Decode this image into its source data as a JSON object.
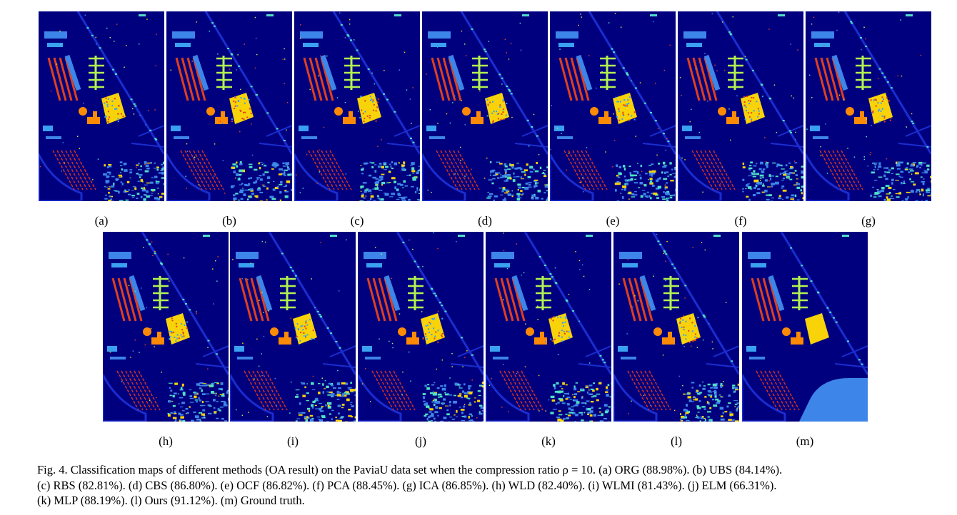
{
  "figure": {
    "panels": [
      {
        "label": "(a)",
        "method": "ORG"
      },
      {
        "label": "(b)",
        "method": "UBS"
      },
      {
        "label": "(c)",
        "method": "RBS"
      },
      {
        "label": "(d)",
        "method": "CBS"
      },
      {
        "label": "(e)",
        "method": "OCF"
      },
      {
        "label": "(f)",
        "method": "PCA"
      },
      {
        "label": "(g)",
        "method": "ICA"
      },
      {
        "label": "(h)",
        "method": "WLD"
      },
      {
        "label": "(i)",
        "method": "WLMI"
      },
      {
        "label": "(j)",
        "method": "ELM"
      },
      {
        "label": "(k)",
        "method": "MLP"
      },
      {
        "label": "(l)",
        "method": "Ours"
      },
      {
        "label": "(m)",
        "method": "Ground truth"
      }
    ],
    "caption": {
      "line1": "Fig. 4.   Classification maps of different methods (OA result) on the PaviaU data set when the compression ratio ρ = 10. (a) ORG (88.98%). (b) UBS (84.14%).",
      "line2": "(c) RBS (82.81%). (d) CBS (86.80%). (e) OCF (86.82%). (f) PCA (88.45%). (g) ICA (86.85%). (h) WLD (82.40%). (i) WLMI (81.43%). (j) ELM (66.31%).",
      "line3": "(k) MLP (88.19%). (l) Ours (91.12%). (m) Ground truth."
    },
    "colors": {
      "background": "#00007f",
      "road": "#1a2dd0",
      "meadow": "#3d85e8",
      "gravel": "#4fe0c4",
      "trees": "#b2f250",
      "metal_sheets": "#f8d30a",
      "soil": "#fd8a04",
      "bitumen": "#e0401a",
      "bricks": "#d83020",
      "shadow": "#3aa0f0"
    }
  }
}
